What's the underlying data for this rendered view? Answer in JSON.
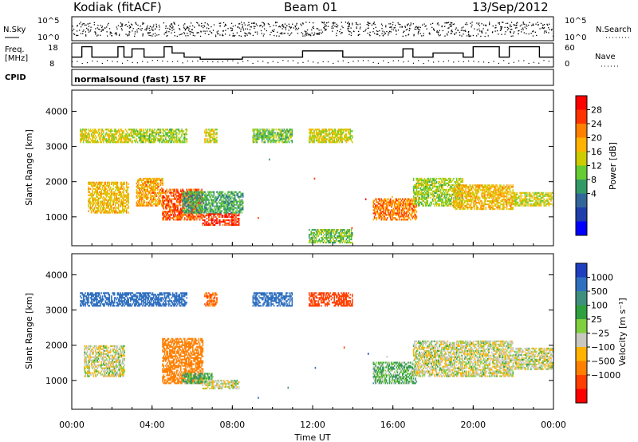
{
  "header": {
    "station": "Kodiak (fitACF)",
    "beam": "Beam 01",
    "date": "13/Sep/2012"
  },
  "noise_panel": {
    "left_label": "N.Sky",
    "left_ticks": [
      "10^5",
      "10^0"
    ],
    "right_label": "N.Search",
    "right_ticks": [
      "10^5",
      "10^0"
    ]
  },
  "freq_panel": {
    "left_label_1": "Freq.",
    "left_label_2": "[MHz]",
    "left_ticks": [
      "18",
      "8"
    ],
    "right_label": "Nave",
    "right_ticks": [
      "60",
      "0"
    ]
  },
  "cpid_panel": {
    "left_label": "CPID",
    "text": "normalsound (fast) 157 RF"
  },
  "power_colorbar": {
    "label": "Power [dB]",
    "ticks": [
      "28",
      "24",
      "20",
      "16",
      "12",
      "8",
      "4"
    ],
    "colors": [
      "#ff0000",
      "#ff3300",
      "#ff7f00",
      "#ffb300",
      "#cccc00",
      "#66cc33",
      "#339966",
      "#336699",
      "#1f3faa",
      "#0000ff"
    ]
  },
  "velocity_colorbar": {
    "label": "Velocity [m s⁻¹]",
    "ticks": [
      "1000",
      "500",
      "100",
      "25",
      "−25",
      "−100",
      "−500",
      "−1000"
    ],
    "colors": [
      "#1f3fbf",
      "#2f6fbf",
      "#3f8f7f",
      "#2f9f3f",
      "#7fcf3f",
      "#c8c8c0",
      "#ffb300",
      "#ff7f00",
      "#ff3f00",
      "#ff0000"
    ]
  },
  "x_axis": {
    "label": "Time UT",
    "ticks": [
      "00:00",
      "04:00",
      "08:00",
      "12:00",
      "16:00",
      "20:00",
      "00:00"
    ]
  },
  "chart_data": [
    {
      "type": "heatmap",
      "name": "power",
      "title": "Kodiak (fitACF) Beam 01 13/Sep/2012",
      "xlabel": "Time UT",
      "ylabel": "Slant Range [km]",
      "xlim_hours": [
        0,
        24
      ],
      "ylim": [
        180,
        4600
      ],
      "yticks": [
        1000,
        2000,
        3000,
        4000
      ],
      "zlabel": "Power [dB]",
      "zlim": [
        0,
        32
      ],
      "echo_regions": [
        {
          "t0": 0.4,
          "t1": 3.0,
          "r0": 3100,
          "r1": 3500,
          "value": 18
        },
        {
          "t0": 3.0,
          "t1": 5.7,
          "r0": 3100,
          "r1": 3500,
          "value": 16
        },
        {
          "t0": 6.6,
          "t1": 7.2,
          "r0": 3100,
          "r1": 3500,
          "value": 18
        },
        {
          "t0": 9.0,
          "t1": 11.0,
          "r0": 3100,
          "r1": 3500,
          "value": 14
        },
        {
          "t0": 11.8,
          "t1": 14.0,
          "r0": 3100,
          "r1": 3500,
          "value": 18
        },
        {
          "t0": 0.8,
          "t1": 2.8,
          "r0": 1100,
          "r1": 2000,
          "value": 20
        },
        {
          "t0": 3.2,
          "t1": 4.5,
          "r0": 1300,
          "r1": 2100,
          "value": 22
        },
        {
          "t0": 4.5,
          "t1": 6.5,
          "r0": 900,
          "r1": 1800,
          "value": 26
        },
        {
          "t0": 6.5,
          "t1": 8.3,
          "r0": 750,
          "r1": 1100,
          "value": 28
        },
        {
          "t0": 5.5,
          "t1": 8.5,
          "r0": 1100,
          "r1": 1700,
          "value": 12
        },
        {
          "t0": 11.8,
          "t1": 14.0,
          "r0": 250,
          "r1": 650,
          "value": 14
        },
        {
          "t0": 15.0,
          "t1": 17.2,
          "r0": 900,
          "r1": 1500,
          "value": 24
        },
        {
          "t0": 17.0,
          "t1": 19.5,
          "r0": 1300,
          "r1": 2100,
          "value": 16
        },
        {
          "t0": 19.0,
          "t1": 22.0,
          "r0": 1200,
          "r1": 1900,
          "value": 20
        },
        {
          "t0": 22.0,
          "t1": 24.0,
          "r0": 1300,
          "r1": 1700,
          "value": 18
        }
      ],
      "scatter_regions": [
        {
          "t0": 9.0,
          "t1": 11.0,
          "r0": 250,
          "r1": 3000
        },
        {
          "t0": 11.8,
          "t1": 14.0,
          "r0": 250,
          "r1": 3000
        },
        {
          "t0": 14.5,
          "t1": 16.0,
          "r0": 250,
          "r1": 3600
        },
        {
          "t0": 0.5,
          "t1": 3.0,
          "r0": 200,
          "r1": 600
        }
      ]
    },
    {
      "type": "heatmap",
      "name": "velocity",
      "xlabel": "Time UT",
      "ylabel": "Slant Range [km]",
      "xlim_hours": [
        0,
        24
      ],
      "ylim": [
        180,
        4600
      ],
      "yticks": [
        1000,
        2000,
        3000,
        4000
      ],
      "zlabel": "Velocity [m s-1]",
      "zlim": [
        -1000,
        1000
      ],
      "echo_regions": [
        {
          "t0": 0.4,
          "t1": 5.7,
          "r0": 3100,
          "r1": 3500,
          "value": 400
        },
        {
          "t0": 6.6,
          "t1": 7.2,
          "r0": 3100,
          "r1": 3500,
          "value": -300
        },
        {
          "t0": 9.0,
          "t1": 11.0,
          "r0": 3100,
          "r1": 3500,
          "value": 600
        },
        {
          "t0": 11.8,
          "t1": 14.0,
          "r0": 3100,
          "r1": 3500,
          "value": -400
        },
        {
          "t0": 0.6,
          "t1": 2.6,
          "r0": 1100,
          "r1": 2000,
          "value": 0
        },
        {
          "t0": 4.5,
          "t1": 6.5,
          "r0": 900,
          "r1": 2200,
          "value": -200
        },
        {
          "t0": 5.5,
          "t1": 7.0,
          "r0": 900,
          "r1": 1200,
          "value": 80
        },
        {
          "t0": 6.5,
          "t1": 8.3,
          "r0": 750,
          "r1": 1000,
          "value": 0
        },
        {
          "t0": 15.0,
          "t1": 17.2,
          "r0": 900,
          "r1": 1500,
          "value": 60
        },
        {
          "t0": 17.0,
          "t1": 22.0,
          "r0": 1100,
          "r1": 2100,
          "value": 0
        },
        {
          "t0": 22.0,
          "t1": 24.0,
          "r0": 1300,
          "r1": 1900,
          "value": 0
        }
      ],
      "scatter_regions": [
        {
          "t0": 9.0,
          "t1": 11.0,
          "r0": 250,
          "r1": 3000
        },
        {
          "t0": 11.8,
          "t1": 14.0,
          "r0": 250,
          "r1": 3000
        },
        {
          "t0": 14.5,
          "t1": 16.0,
          "r0": 250,
          "r1": 3600
        },
        {
          "t0": 0.5,
          "t1": 3.0,
          "r0": 200,
          "r1": 600
        }
      ]
    },
    {
      "type": "line",
      "name": "frequency",
      "ylabel": "Freq. [MHz]",
      "ylim": [
        8,
        18
      ],
      "x_hours": [
        0,
        0.5,
        0.5,
        1.0,
        1.0,
        2.3,
        2.3,
        2.6,
        2.6,
        3.0,
        3.0,
        3.6,
        3.6,
        4.6,
        4.6,
        5.0,
        5.0,
        5.6,
        5.6,
        6.4,
        6.4,
        8.5,
        8.5,
        11.5,
        11.5,
        13.5,
        13.5,
        16.5,
        16.5,
        17.0,
        17.0,
        18.0,
        18.0,
        19.5,
        19.5,
        20.0,
        20.0,
        21.3,
        21.3,
        21.8,
        21.8,
        23.3,
        23.3,
        24.0
      ],
      "values": [
        12,
        12,
        17,
        17,
        12,
        12,
        17,
        17,
        12,
        12,
        16,
        16,
        12,
        12,
        17,
        17,
        14,
        14,
        12,
        12,
        11,
        11,
        12,
        12,
        15,
        15,
        12,
        12,
        16,
        16,
        12,
        12,
        14,
        14,
        12,
        12,
        17,
        17,
        12,
        12,
        17,
        17,
        12,
        12
      ]
    }
  ]
}
